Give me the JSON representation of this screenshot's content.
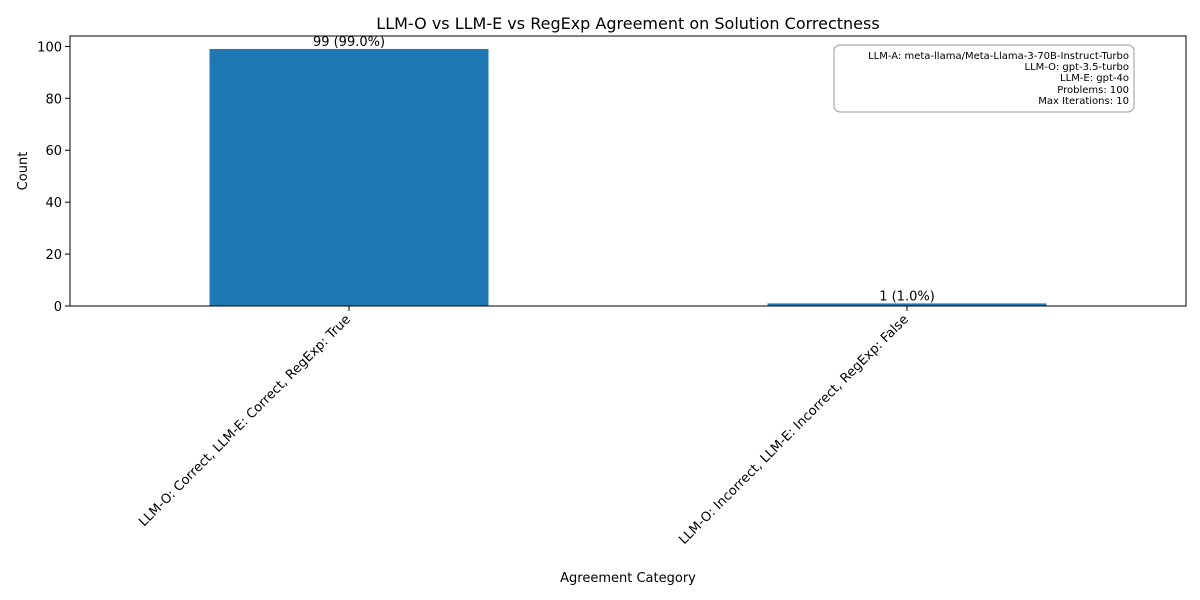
{
  "chart_data": {
    "type": "bar",
    "title": "LLM-O vs LLM-E vs RegExp Agreement on Solution Correctness",
    "xlabel": "Agreement Category",
    "ylabel": "Count",
    "categories": [
      "LLM-O: Correct, LLM-E: Correct, RegExp: True",
      "LLM-O: Incorrect, LLM-E: Incorrect, RegExp: False"
    ],
    "values": [
      99,
      1
    ],
    "data_labels": [
      "99 (99.0%)",
      "1 (1.0%)"
    ],
    "ylim": [
      0,
      104
    ],
    "yticks": [
      0,
      20,
      40,
      60,
      80,
      100
    ],
    "bar_color": "#1f77b4",
    "grid": false,
    "legend": "none",
    "info_box": {
      "placement": "top-right",
      "lines": [
        "LLM-A: meta-llama/Meta-Llama-3-70B-Instruct-Turbo",
        "LLM-O: gpt-3.5-turbo",
        "LLM-E: gpt-4o",
        "Problems: 100",
        "Max Iterations: 10"
      ]
    }
  }
}
